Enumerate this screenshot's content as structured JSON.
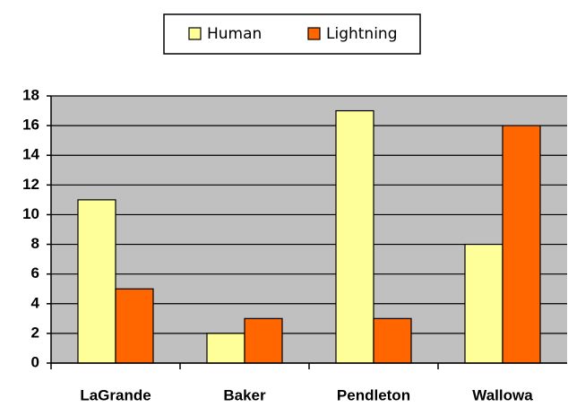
{
  "chart_data": {
    "type": "bar",
    "categories": [
      "LaGrande",
      "Baker",
      "Pendleton",
      "Wallowa"
    ],
    "series": [
      {
        "name": "Human",
        "color": "#ffff99",
        "values": [
          11,
          2,
          17,
          8
        ]
      },
      {
        "name": "Lightning",
        "color": "#ff6600",
        "values": [
          5,
          3,
          3,
          16
        ]
      }
    ],
    "ylim": [
      0,
      18
    ],
    "yticks": [
      0,
      2,
      4,
      6,
      8,
      10,
      12,
      14,
      16,
      18
    ],
    "grid": true,
    "legend": "top",
    "background": "#c0c0c0"
  }
}
